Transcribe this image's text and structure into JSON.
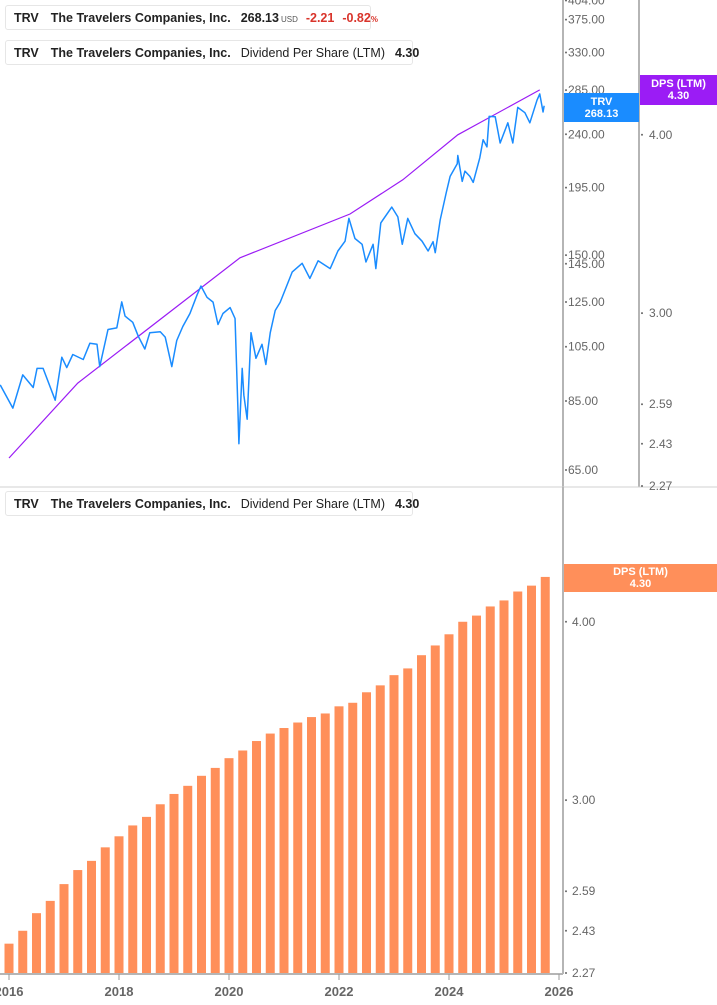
{
  "colors": {
    "price": "#1a8cff",
    "dps_line": "#9b1cf5",
    "dps_bar": "#ff8f5a",
    "negative": "#d9342b"
  },
  "legend_price": {
    "symbol": "TRV",
    "name": "The Travelers Companies, Inc.",
    "price": "268.13",
    "currency": "USD",
    "change": "-2.21",
    "change_pct": "-0.82",
    "pct_sign": "%"
  },
  "legend_dps": {
    "symbol": "TRV",
    "name": "The Travelers Companies, Inc.",
    "metric": "Dividend Per Share (LTM)",
    "value": "4.30"
  },
  "legend_dps_bottom": {
    "symbol": "TRV",
    "name": "The Travelers Companies, Inc.",
    "metric": "Dividend Per Share (LTM)",
    "value": "4.30"
  },
  "tags": {
    "price": {
      "line1": "TRV",
      "line2": "268.13"
    },
    "dps_top": {
      "line1": "DPS (LTM)",
      "line2": "4.30"
    },
    "dps_bottom": {
      "line1": "DPS (LTM)",
      "line2": "4.30"
    }
  },
  "chart_data": [
    {
      "type": "line",
      "title": "",
      "scale": "log",
      "xlim": [
        2015.84,
        2026.1
      ],
      "x_ticks": [
        "2016",
        "2018",
        "2020",
        "2022",
        "2024",
        "2026"
      ],
      "price_axis": {
        "ticks": [
          "65.00",
          "85.00",
          "105.00",
          "125.00",
          "145.00",
          "150.00",
          "195.00",
          "240.00",
          "285.00",
          "330.00",
          "375.00",
          "404.00"
        ],
        "ylim": [
          58,
          410
        ]
      },
      "dps_axis": {
        "ticks": [
          "2.27",
          "2.43",
          "2.59",
          "3.00",
          "4.00"
        ],
        "ylim": [
          2.27,
          4.65
        ]
      },
      "series": [
        {
          "name": "TRV",
          "axis": "price",
          "x": [
            2015.84,
            2016.07,
            2016.25,
            2016.44,
            2016.51,
            2016.62,
            2016.84,
            2016.96,
            2017.05,
            2017.16,
            2017.35,
            2017.47,
            2017.6,
            2017.65,
            2017.8,
            2017.96,
            2018.05,
            2018.11,
            2018.25,
            2018.35,
            2018.47,
            2018.56,
            2018.75,
            2018.84,
            2018.96,
            2019.05,
            2019.16,
            2019.29,
            2019.42,
            2019.49,
            2019.6,
            2019.71,
            2019.8,
            2019.89,
            2020.02,
            2020.11,
            2020.16,
            2020.18,
            2020.24,
            2020.27,
            2020.33,
            2020.4,
            2020.49,
            2020.6,
            2020.67,
            2020.75,
            2020.84,
            2020.93,
            2021.15,
            2021.33,
            2021.47,
            2021.62,
            2021.84,
            2021.98,
            2022.11,
            2022.18,
            2022.29,
            2022.42,
            2022.49,
            2022.62,
            2022.67,
            2022.76,
            2022.96,
            2023.07,
            2023.15,
            2023.25,
            2023.38,
            2023.51,
            2023.62,
            2023.71,
            2023.75,
            2023.84,
            2023.95,
            2024.02,
            2024.15,
            2024.16,
            2024.24,
            2024.29,
            2024.38,
            2024.44,
            2024.56,
            2024.62,
            2024.69,
            2024.73,
            2024.84,
            2024.93,
            2025.07,
            2025.16,
            2025.25,
            2025.38,
            2025.47,
            2025.6,
            2025.65,
            2025.71,
            2025.73
          ],
          "y": [
            90.5,
            82.7,
            94.1,
            89.6,
            96.5,
            96.5,
            85.3,
            100.8,
            96.8,
            101.9,
            99.9,
            106.4,
            106,
            97.2,
            112.3,
            113,
            125,
            118.3,
            115.5,
            109.4,
            104.1,
            110.9,
            111.3,
            109,
            97.2,
            107.6,
            113.6,
            119.5,
            128.5,
            133,
            127.3,
            124.9,
            114.5,
            119.5,
            122.3,
            117.2,
            83.7,
            72,
            96.5,
            87,
            79.2,
            110.9,
            100.4,
            106,
            98,
            110.9,
            120.9,
            124.8,
            140.5,
            145.3,
            137,
            146.7,
            142.3,
            152.4,
            158.3,
            173,
            160,
            156.4,
            146,
            156.4,
            142.3,
            170,
            180.8,
            174,
            156.4,
            173,
            163,
            158.3,
            152.4,
            158,
            151.4,
            172,
            191.3,
            203.7,
            214,
            221,
            199.8,
            208,
            203.7,
            199,
            219,
            235,
            228.5,
            257.3,
            257,
            232,
            251,
            232,
            266.5,
            261,
            251,
            274,
            280.8,
            261.7,
            268.13
          ]
        },
        {
          "name": "DPS (LTM)",
          "axis": "dps",
          "x": [
            2016.0,
            2017.25,
            2020.2,
            2022.2,
            2023.16,
            2024.16,
            2025.65
          ],
          "y": [
            2.375,
            2.68,
            3.28,
            3.52,
            3.72,
            4.0,
            4.3
          ]
        }
      ]
    },
    {
      "type": "bar",
      "title": "",
      "scale": "log",
      "x_ticks": [
        "2016",
        "2018",
        "2020",
        "2022",
        "2024",
        "2026"
      ],
      "y_ticks": [
        "2.27",
        "2.43",
        "2.59",
        "3.00",
        "4.00"
      ],
      "ylim": [
        2.27,
        4.65
      ],
      "series": [
        {
          "name": "DPS (LTM)",
          "start": 2016.0,
          "step_years": 0.25,
          "values": [
            2.38,
            2.43,
            2.5,
            2.55,
            2.62,
            2.68,
            2.72,
            2.78,
            2.83,
            2.88,
            2.92,
            2.98,
            3.03,
            3.07,
            3.12,
            3.16,
            3.21,
            3.25,
            3.3,
            3.34,
            3.37,
            3.4,
            3.43,
            3.45,
            3.49,
            3.51,
            3.57,
            3.61,
            3.67,
            3.71,
            3.79,
            3.85,
            3.92,
            4.0,
            4.04,
            4.1,
            4.14,
            4.2,
            4.24,
            4.3
          ]
        }
      ]
    }
  ]
}
